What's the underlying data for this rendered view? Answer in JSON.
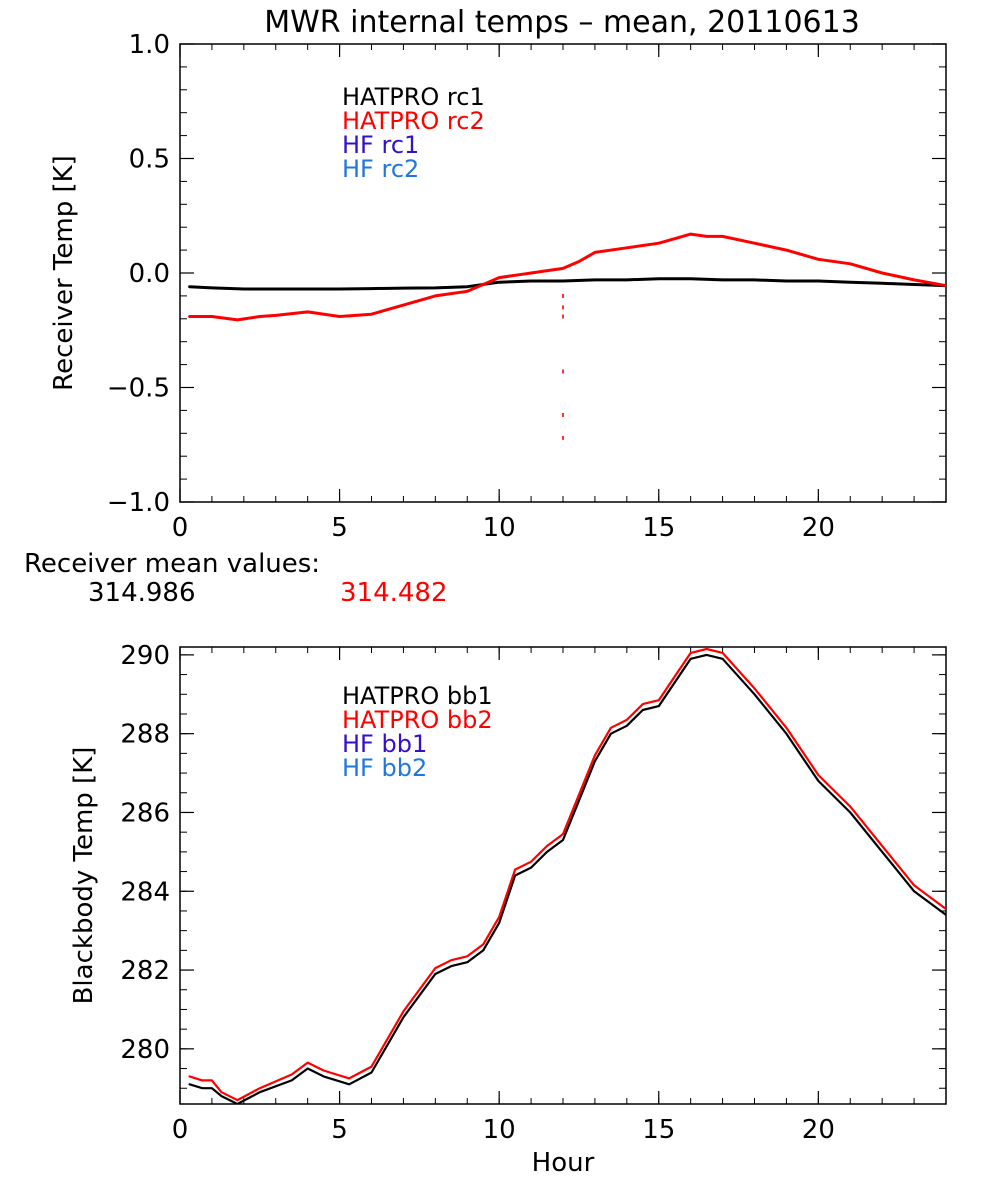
{
  "colors": {
    "black": "#000000",
    "red": "#ff0000",
    "hf1": "#3311cc",
    "hf2": "#2277dd"
  },
  "title": "MWR internal temps – mean, 20110613",
  "receiver_means": {
    "label": "Receiver mean values:",
    "values": [
      "314.986",
      "314.482"
    ]
  },
  "chart_data": [
    {
      "type": "line",
      "title": "MWR internal temps – mean, 20110613",
      "xlabel": "",
      "ylabel": "Receiver Temp [K]",
      "xlim": [
        0,
        24
      ],
      "ylim": [
        -1.0,
        1.0
      ],
      "xticks": [
        0,
        5,
        10,
        15,
        20
      ],
      "xtick_labels": [
        "0",
        "5",
        "10",
        "15",
        "20"
      ],
      "yticks": [
        -1.0,
        -0.5,
        0.0,
        0.5,
        1.0
      ],
      "ytick_labels": [
        "−1.0",
        "−0.5",
        "0.0",
        "0.5",
        "1.0"
      ],
      "legend": [
        "HATPRO rc1",
        "HATPRO rc2",
        "HF rc1",
        "HF rc2"
      ],
      "series": [
        {
          "name": "HATPRO rc1",
          "color": "#000000",
          "x": [
            0.3,
            1,
            2,
            3,
            4,
            5,
            6,
            7,
            8,
            9,
            10,
            11,
            12,
            13,
            14,
            15,
            16,
            17,
            18,
            19,
            20,
            21,
            22,
            23,
            24
          ],
          "y": [
            -0.06,
            -0.065,
            -0.07,
            -0.07,
            -0.07,
            -0.07,
            -0.068,
            -0.066,
            -0.065,
            -0.06,
            -0.04,
            -0.035,
            -0.035,
            -0.03,
            -0.03,
            -0.025,
            -0.025,
            -0.03,
            -0.03,
            -0.035,
            -0.035,
            -0.04,
            -0.045,
            -0.05,
            -0.055
          ]
        },
        {
          "name": "HATPRO rc2",
          "color": "#ff0000",
          "x": [
            0.3,
            1,
            1.8,
            2.5,
            3,
            4,
            5,
            6,
            7,
            8,
            9,
            9.5,
            10,
            10.5,
            11,
            12,
            12.5,
            13,
            14,
            15,
            15.5,
            16,
            16.5,
            17,
            18,
            19,
            20,
            21,
            22,
            23,
            24
          ],
          "y": [
            -0.19,
            -0.19,
            -0.205,
            -0.19,
            -0.185,
            -0.17,
            -0.19,
            -0.18,
            -0.14,
            -0.1,
            -0.08,
            -0.05,
            -0.02,
            -0.01,
            0.0,
            0.02,
            0.05,
            0.09,
            0.11,
            0.13,
            0.15,
            0.17,
            0.16,
            0.16,
            0.13,
            0.1,
            0.06,
            0.04,
            0.0,
            -0.03,
            -0.055
          ]
        },
        {
          "name": "HATPRO rc2 dropout",
          "color": "#ff0000",
          "mode": "points",
          "x": [
            12,
            12,
            12,
            12,
            12,
            12
          ],
          "y": [
            -0.1,
            -0.15,
            -0.19,
            -0.43,
            -0.62,
            -0.72
          ]
        }
      ]
    },
    {
      "type": "line",
      "title": "",
      "xlabel": "Hour",
      "ylabel": "Blackbody Temp [K]",
      "xlim": [
        0,
        24
      ],
      "ylim": [
        278.6,
        290.2
      ],
      "xticks": [
        0,
        5,
        10,
        15,
        20
      ],
      "xtick_labels": [
        "0",
        "5",
        "10",
        "15",
        "20"
      ],
      "yticks": [
        280,
        282,
        284,
        286,
        288,
        290
      ],
      "ytick_labels": [
        "280",
        "282",
        "284",
        "286",
        "288",
        "290"
      ],
      "legend": [
        "HATPRO bb1",
        "HATPRO bb2",
        "HF bb1",
        "HF bb2"
      ],
      "series": [
        {
          "name": "HATPRO bb1",
          "color": "#000000",
          "x": [
            0.3,
            0.7,
            1.0,
            1.3,
            1.8,
            2.5,
            3.5,
            4.0,
            4.5,
            5.3,
            6.0,
            7.0,
            8.0,
            8.5,
            9.0,
            9.5,
            10.0,
            10.5,
            11.0,
            11.5,
            12.0,
            12.5,
            13.0,
            13.5,
            14.0,
            14.5,
            15.0,
            15.5,
            16.0,
            16.5,
            17.0,
            18.0,
            19.0,
            20.0,
            21.0,
            22.0,
            23.0,
            24.0
          ],
          "y": [
            279.1,
            279.0,
            279.0,
            278.8,
            278.6,
            278.9,
            279.2,
            279.5,
            279.3,
            279.1,
            279.4,
            280.8,
            281.9,
            282.1,
            282.2,
            282.5,
            283.2,
            284.4,
            284.6,
            285.0,
            285.3,
            286.3,
            287.3,
            288.0,
            288.2,
            288.6,
            288.7,
            289.3,
            289.9,
            290.0,
            289.9,
            289.0,
            288.0,
            286.8,
            286.0,
            285.0,
            284.0,
            283.4
          ]
        },
        {
          "name": "HATPRO bb2",
          "color": "#ff0000",
          "x": [
            0.3,
            0.7,
            1.0,
            1.3,
            1.8,
            2.5,
            3.5,
            4.0,
            4.5,
            5.3,
            6.0,
            7.0,
            8.0,
            8.5,
            9.0,
            9.5,
            10.0,
            10.5,
            11.0,
            11.5,
            12.0,
            12.5,
            13.0,
            13.5,
            14.0,
            14.5,
            15.0,
            15.5,
            16.0,
            16.5,
            17.0,
            18.0,
            19.0,
            20.0,
            21.0,
            22.0,
            23.0,
            24.0
          ],
          "y": [
            279.3,
            279.2,
            279.2,
            278.9,
            278.7,
            279.0,
            279.35,
            279.65,
            279.45,
            279.25,
            279.55,
            280.95,
            282.05,
            282.25,
            282.35,
            282.65,
            283.35,
            284.55,
            284.75,
            285.15,
            285.45,
            286.45,
            287.45,
            288.15,
            288.35,
            288.75,
            288.85,
            289.45,
            290.05,
            290.15,
            290.05,
            289.15,
            288.15,
            286.95,
            286.15,
            285.15,
            284.15,
            283.55
          ]
        }
      ]
    }
  ]
}
